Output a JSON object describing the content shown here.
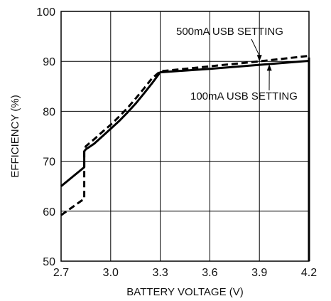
{
  "chart_data": {
    "type": "line",
    "title": "",
    "xlabel": "BATTERY VOLTAGE (V)",
    "ylabel": "EFFICIENCY (%)",
    "xlim": [
      2.7,
      4.2
    ],
    "ylim": [
      50,
      100
    ],
    "xticks": [
      2.7,
      3.0,
      3.3,
      3.6,
      3.9,
      4.2
    ],
    "xtick_labels": [
      "2.7",
      "3.0",
      "3.3",
      "3.6",
      "3.9",
      "4.2"
    ],
    "yticks": [
      50,
      60,
      70,
      80,
      90,
      100
    ],
    "ytick_labels": [
      "50",
      "60",
      "70",
      "80",
      "90",
      "100"
    ],
    "grid": true,
    "series": [
      {
        "name": "100mA USB SETTING",
        "style": "solid",
        "color": "#000000",
        "x": [
          2.7,
          2.84,
          2.84,
          2.85,
          2.9,
          2.95,
          3.0,
          3.05,
          3.1,
          3.15,
          3.2,
          3.25,
          3.3,
          3.6,
          3.9,
          4.2,
          4.2
        ],
        "y": [
          65.0,
          68.8,
          72.0,
          72.4,
          73.5,
          75.0,
          76.5,
          78.0,
          79.7,
          81.5,
          83.5,
          85.6,
          87.8,
          88.5,
          89.3,
          90.1,
          50.0
        ]
      },
      {
        "name": "500mA USB SETTING",
        "style": "dashed",
        "color": "#000000",
        "x": [
          2.7,
          2.84,
          2.84,
          2.85,
          2.9,
          2.95,
          3.0,
          3.05,
          3.1,
          3.15,
          3.2,
          3.25,
          3.3,
          3.6,
          3.9,
          4.2,
          4.2
        ],
        "y": [
          59.2,
          62.5,
          72.3,
          73.0,
          74.4,
          75.9,
          77.3,
          78.9,
          80.6,
          82.5,
          84.5,
          86.6,
          88.0,
          89.0,
          90.0,
          91.1,
          50.0
        ]
      }
    ],
    "annotations": [
      {
        "text": "500mA USB SETTING",
        "series": "500mA USB SETTING",
        "arrow_to": [
          3.9,
          90.0
        ]
      },
      {
        "text": "100mA USB SETTING",
        "series": "100mA USB SETTING",
        "arrow_to": [
          3.96,
          89.4
        ]
      }
    ]
  }
}
